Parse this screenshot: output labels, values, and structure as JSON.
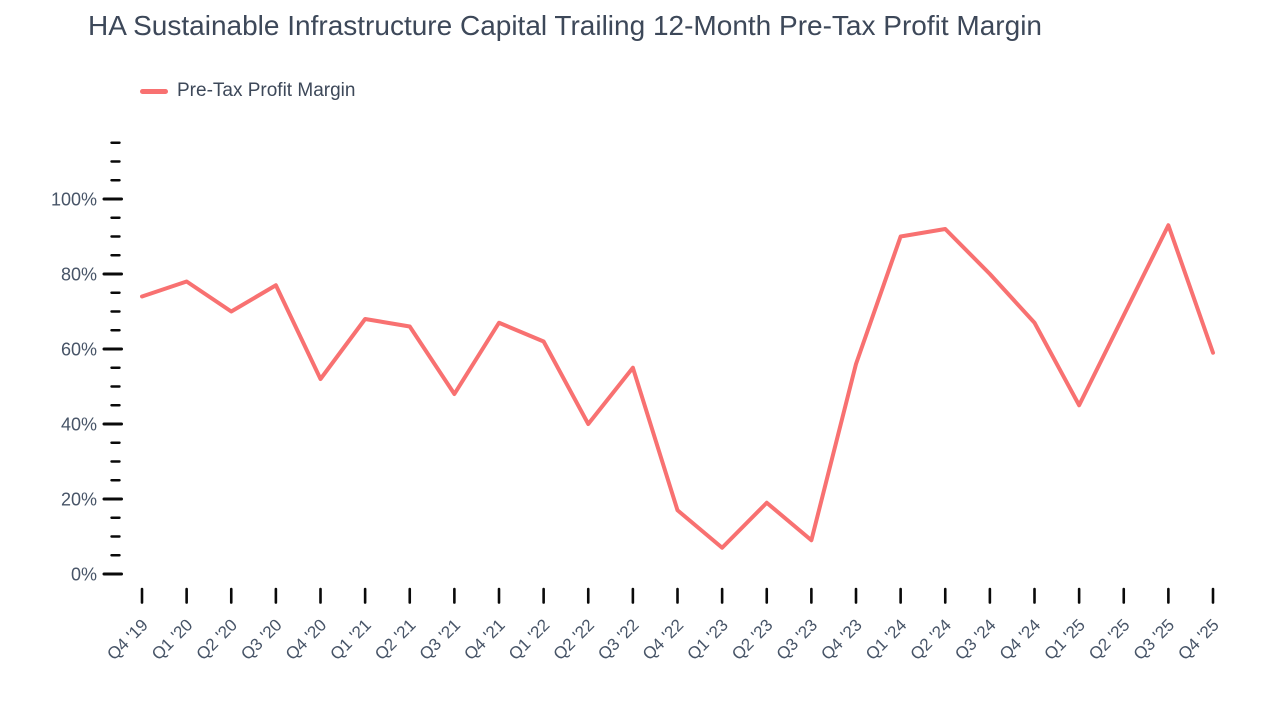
{
  "title": "HA Sustainable Infrastructure Capital Trailing 12-Month Pre-Tax Profit Margin",
  "legend": {
    "label": "Pre-Tax Profit Margin"
  },
  "colors": {
    "line": "#f87171",
    "title_text": "#3d4859",
    "axis_text": "#475467",
    "tick": "#0a0a0a",
    "background": "#ffffff"
  },
  "chart_data": {
    "type": "line",
    "title": "HA Sustainable Infrastructure Capital Trailing 12-Month Pre-Tax Profit Margin",
    "xlabel": "",
    "ylabel": "",
    "categories": [
      "Q4 '19",
      "Q1 '20",
      "Q2 '20",
      "Q3 '20",
      "Q4 '20",
      "Q1 '21",
      "Q2 '21",
      "Q3 '21",
      "Q4 '21",
      "Q1 '22",
      "Q2 '22",
      "Q3 '22",
      "Q4 '22",
      "Q1 '23",
      "Q2 '23",
      "Q3 '23",
      "Q4 '23",
      "Q1 '24",
      "Q2 '24",
      "Q3 '24",
      "Q4 '24",
      "Q1 '25",
      "Q2 '25",
      "Q3 '25",
      "Q4 '25"
    ],
    "series": [
      {
        "name": "Pre-Tax Profit Margin",
        "color": "#f87171",
        "values": [
          74,
          78,
          70,
          77,
          52,
          68,
          66,
          48,
          67,
          62,
          40,
          55,
          17,
          7,
          19,
          9,
          56,
          90,
          92,
          80,
          67,
          45,
          69,
          93,
          59
        ]
      }
    ],
    "unit": "%",
    "ylim": [
      0,
      116
    ],
    "y_major_tick_step": 20,
    "y_minor_tick_step": 5,
    "y_tick_format": "percent",
    "x_tick_label_rotation": -45,
    "grid": false,
    "legend_position": "top-left"
  }
}
